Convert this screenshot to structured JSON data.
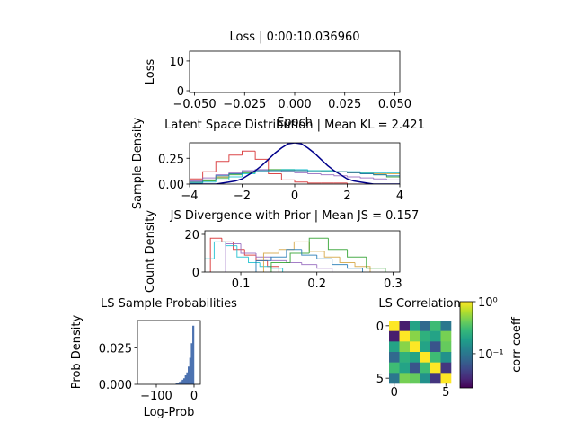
{
  "chart_data": [
    {
      "type": "line",
      "title": "Loss | 0:00:10.036960",
      "ylabel": "Loss",
      "xlabel": "Epoch",
      "xlim": [
        -0.0525,
        0.0525
      ],
      "ylim": [
        -0.6,
        13.3
      ],
      "xticks": [
        {
          "value": -0.05,
          "label": "−0.050"
        },
        {
          "value": -0.025,
          "label": "−0.025"
        },
        {
          "value": 0,
          "label": "0.000"
        },
        {
          "value": 0.025,
          "label": "0.025"
        },
        {
          "value": 0.05,
          "label": "0.050"
        }
      ],
      "yticks": [
        0,
        10
      ]
    },
    {
      "type": "histogram",
      "title": "Latent Space Distribution | Mean KL = 2.421",
      "ylabel": "Sample Density",
      "histtype": "step",
      "xlim": [
        -4,
        4
      ],
      "ylim": [
        0,
        0.4
      ],
      "xticks": [
        {
          "value": -4,
          "label": "−4"
        },
        {
          "value": -2,
          "label": "−2"
        },
        0,
        2,
        4
      ],
      "yticks": [
        {
          "value": 0,
          "label": "0.00"
        },
        {
          "value": 0.25,
          "label": "0.25"
        }
      ],
      "bins": [
        -4,
        -3.5,
        -3,
        -2.5,
        -2,
        -1.5,
        -1,
        -0.5,
        0,
        0.5,
        1,
        1.5,
        2,
        2.5,
        3,
        3.5,
        4
      ],
      "series": [
        {
          "color": "#d62728",
          "values": [
            0.05,
            0.12,
            0.22,
            0.28,
            0.32,
            0.24,
            0.1,
            0.04,
            0.02,
            0.01,
            0.01,
            0.01,
            0,
            0,
            0,
            0
          ]
        },
        {
          "color": "#9467bd",
          "values": [
            0.03,
            0.06,
            0.09,
            0.11,
            0.13,
            0.14,
            0.13,
            0.12,
            0.11,
            0.1,
            0.09,
            0.08,
            0.07,
            0.06,
            0.05,
            0.04
          ]
        },
        {
          "color": "#2ca02c",
          "values": [
            0.01,
            0.03,
            0.06,
            0.09,
            0.11,
            0.13,
            0.14,
            0.14,
            0.13,
            0.13,
            0.13,
            0.12,
            0.11,
            0.1,
            0.09,
            0.07
          ]
        },
        {
          "color": "#d4a340",
          "values": [
            0.02,
            0.04,
            0.07,
            0.1,
            0.12,
            0.13,
            0.13,
            0.13,
            0.13,
            0.13,
            0.12,
            0.12,
            0.11,
            0.11,
            0.1,
            0.1
          ]
        },
        {
          "color": "#17becf",
          "values": [
            0.01,
            0.02,
            0.04,
            0.07,
            0.1,
            0.12,
            0.13,
            0.14,
            0.14,
            0.13,
            0.13,
            0.12,
            0.12,
            0.11,
            0.11,
            0.11
          ]
        },
        {
          "color": "#1f77b4",
          "values": [
            0.02,
            0.04,
            0.08,
            0.1,
            0.12,
            0.13,
            0.13,
            0.13,
            0.13,
            0.12,
            0.12,
            0.12,
            0.11,
            0.1,
            0.09,
            0.08
          ]
        }
      ],
      "curve": {
        "color": "#00008b",
        "x": [
          -4,
          -3.75,
          -3.5,
          -3.25,
          -3,
          -2.75,
          -2.5,
          -2.25,
          -2,
          -1.75,
          -1.5,
          -1.25,
          -1,
          -0.75,
          -0.5,
          -0.25,
          0,
          0.25,
          0.5,
          0.75,
          1,
          1.25,
          1.5,
          1.75,
          2,
          2.25,
          2.5,
          2.75,
          3,
          3.25,
          3.5,
          3.75,
          4
        ],
        "values": [
          0,
          0,
          0,
          0,
          0,
          0.01,
          0.02,
          0.03,
          0.05,
          0.09,
          0.13,
          0.18,
          0.24,
          0.3,
          0.35,
          0.39,
          0.4,
          0.39,
          0.35,
          0.3,
          0.24,
          0.18,
          0.13,
          0.09,
          0.05,
          0.03,
          0.02,
          0.01,
          0,
          0,
          0,
          0,
          0
        ]
      }
    },
    {
      "type": "histogram",
      "title": "JS Divergence with Prior | Mean JS = 0.157",
      "ylabel": "Count Density",
      "histtype": "step",
      "xlim": [
        0.0527,
        0.309
      ],
      "ylim": [
        0,
        21.9
      ],
      "xticks": [
        0.1,
        0.2,
        0.3
      ],
      "yticks": [
        0,
        20
      ],
      "series": [
        {
          "color": "#d62728",
          "bins": [
            0.06,
            0.075,
            0.09,
            0.105,
            0.12,
            0.135,
            0.15
          ],
          "values": [
            18,
            16,
            12,
            9,
            6,
            3
          ]
        },
        {
          "color": "#17becf",
          "bins": [
            0.05,
            0.065,
            0.08,
            0.095,
            0.11,
            0.125,
            0.14,
            0.155
          ],
          "values": [
            7,
            16,
            14,
            8,
            5,
            3,
            2
          ]
        },
        {
          "color": "#9467bd",
          "bins": [
            0.08,
            0.1,
            0.12,
            0.14,
            0.16,
            0.18,
            0.2,
            0.22
          ],
          "values": [
            15,
            10,
            8,
            6,
            5,
            4,
            2
          ]
        },
        {
          "color": "#d4a340",
          "bins": [
            0.13,
            0.15,
            0.17,
            0.19,
            0.21,
            0.23,
            0.25,
            0.27
          ],
          "values": [
            10,
            12,
            16,
            11,
            8,
            5,
            3
          ]
        },
        {
          "color": "#2ca02c",
          "bins": [
            0.14,
            0.165,
            0.19,
            0.215,
            0.24,
            0.265,
            0.29
          ],
          "values": [
            5,
            10,
            18,
            12,
            8,
            2
          ]
        },
        {
          "color": "#1f77b4",
          "bins": [
            0.12,
            0.14,
            0.16,
            0.18,
            0.2,
            0.22,
            0.24,
            0.26
          ],
          "values": [
            6,
            8,
            12,
            9,
            7,
            4,
            2
          ]
        }
      ]
    },
    {
      "type": "histogram",
      "title": "LS Sample Probabilities",
      "ylabel": "Prob Density",
      "xlabel": "Log-Prob",
      "histtype": "bar",
      "xlim": [
        -150,
        16.7
      ],
      "ylim": [
        0,
        0.0437
      ],
      "xticks": [
        {
          "value": -100,
          "label": "−100"
        },
        0
      ],
      "yticks": [
        {
          "value": 0,
          "label": "0.000"
        },
        {
          "value": 0.025,
          "label": "0.025"
        }
      ],
      "series": [
        {
          "color": "#4c72b0",
          "bins": [
            -48,
            -44,
            -40,
            -36,
            -32,
            -28,
            -24,
            -20,
            -16,
            -12,
            -8,
            -4,
            0
          ],
          "values": [
            0.0005,
            0.001,
            0.0015,
            0.002,
            0.003,
            0.004,
            0.006,
            0.008,
            0.012,
            0.018,
            0.028,
            0.04
          ]
        }
      ]
    },
    {
      "type": "heatmap",
      "title": "LS Correlation",
      "colormap": "viridis",
      "color_scale": "log",
      "clim": [
        0.022,
        1
      ],
      "xticks": [
        0,
        5
      ],
      "yticks": [
        0,
        5
      ],
      "colorbar_label": "corr coeff",
      "colorbar_ticks": [
        {
          "value": 1,
          "label": "10⁰"
        },
        {
          "value": 0.1,
          "label": "10⁻¹"
        }
      ],
      "matrix": [
        [
          1,
          0.03,
          0.2,
          0.08,
          0.3,
          0.1
        ],
        [
          0.03,
          1,
          0.5,
          0.25,
          0.2,
          0.45
        ],
        [
          0.2,
          0.5,
          1,
          0.2,
          0.06,
          0.4
        ],
        [
          0.08,
          0.25,
          0.2,
          1,
          0.3,
          0.15
        ],
        [
          0.3,
          0.2,
          0.06,
          0.3,
          1,
          0.04
        ],
        [
          0.1,
          0.45,
          0.4,
          0.15,
          0.04,
          1
        ]
      ]
    }
  ]
}
